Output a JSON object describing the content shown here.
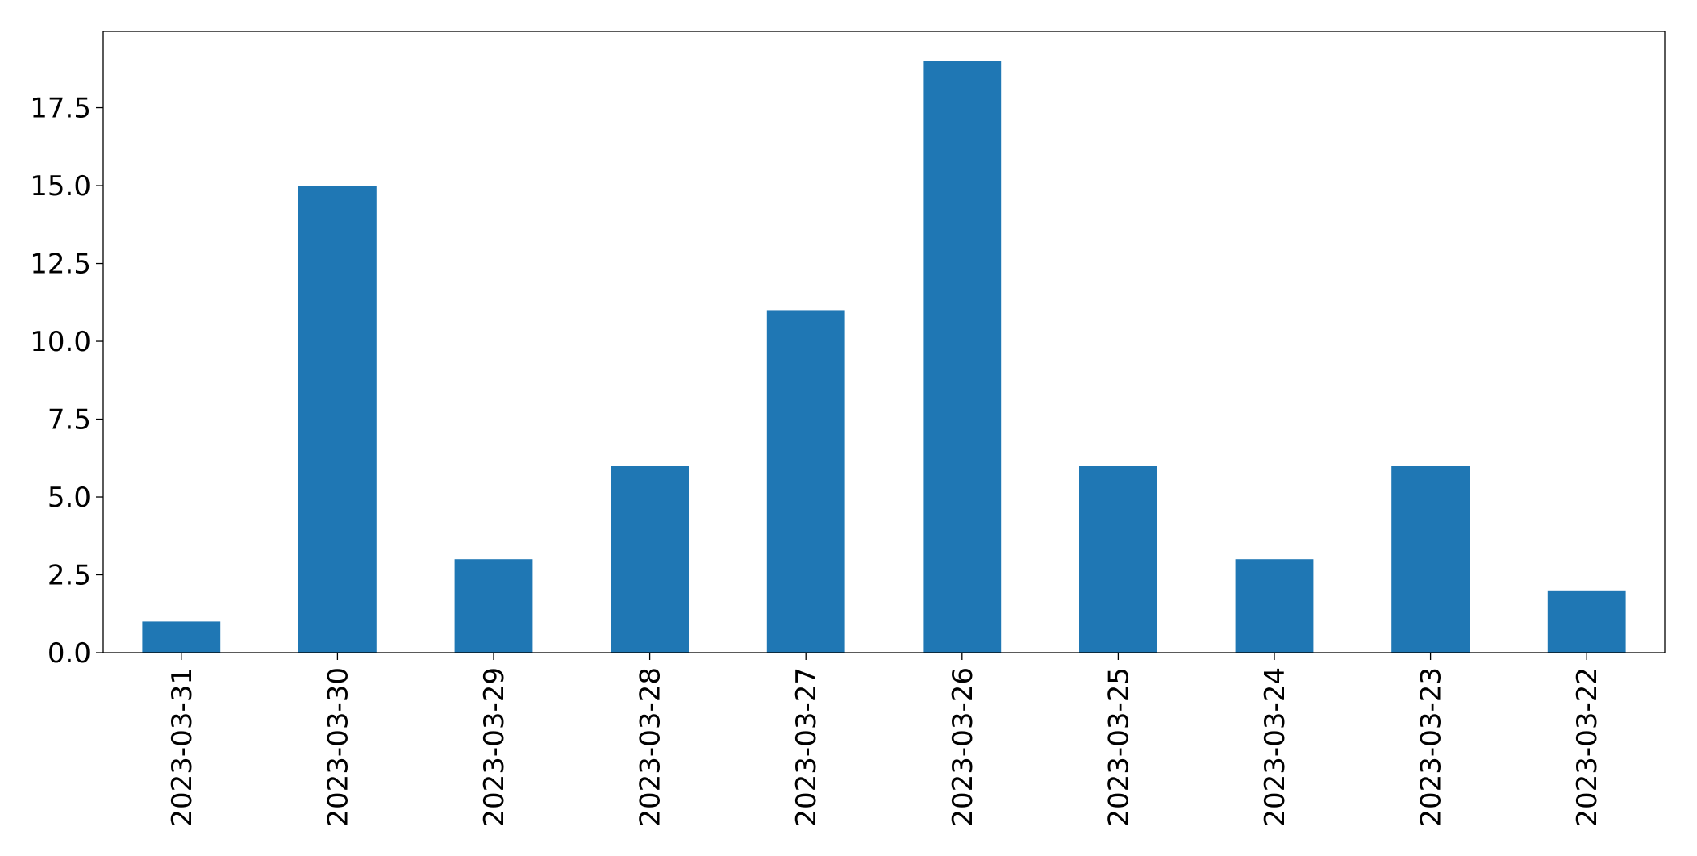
{
  "chart_data": {
    "type": "bar",
    "categories": [
      "2023-03-31",
      "2023-03-30",
      "2023-03-29",
      "2023-03-28",
      "2023-03-27",
      "2023-03-26",
      "2023-03-25",
      "2023-03-24",
      "2023-03-23",
      "2023-03-22"
    ],
    "values": [
      1,
      15,
      3,
      6,
      11,
      19,
      6,
      3,
      6,
      2
    ],
    "color": "#1f77b4",
    "ylim": [
      0,
      19.95
    ],
    "yticks": [
      {
        "value": 0,
        "label": "0.0"
      },
      2.5,
      {
        "value": 5,
        "label": "5.0"
      },
      7.5,
      {
        "value": 10,
        "label": "10.0"
      },
      12.5,
      {
        "value": 15,
        "label": "15.0"
      },
      17.5
    ],
    "grid": false
  }
}
